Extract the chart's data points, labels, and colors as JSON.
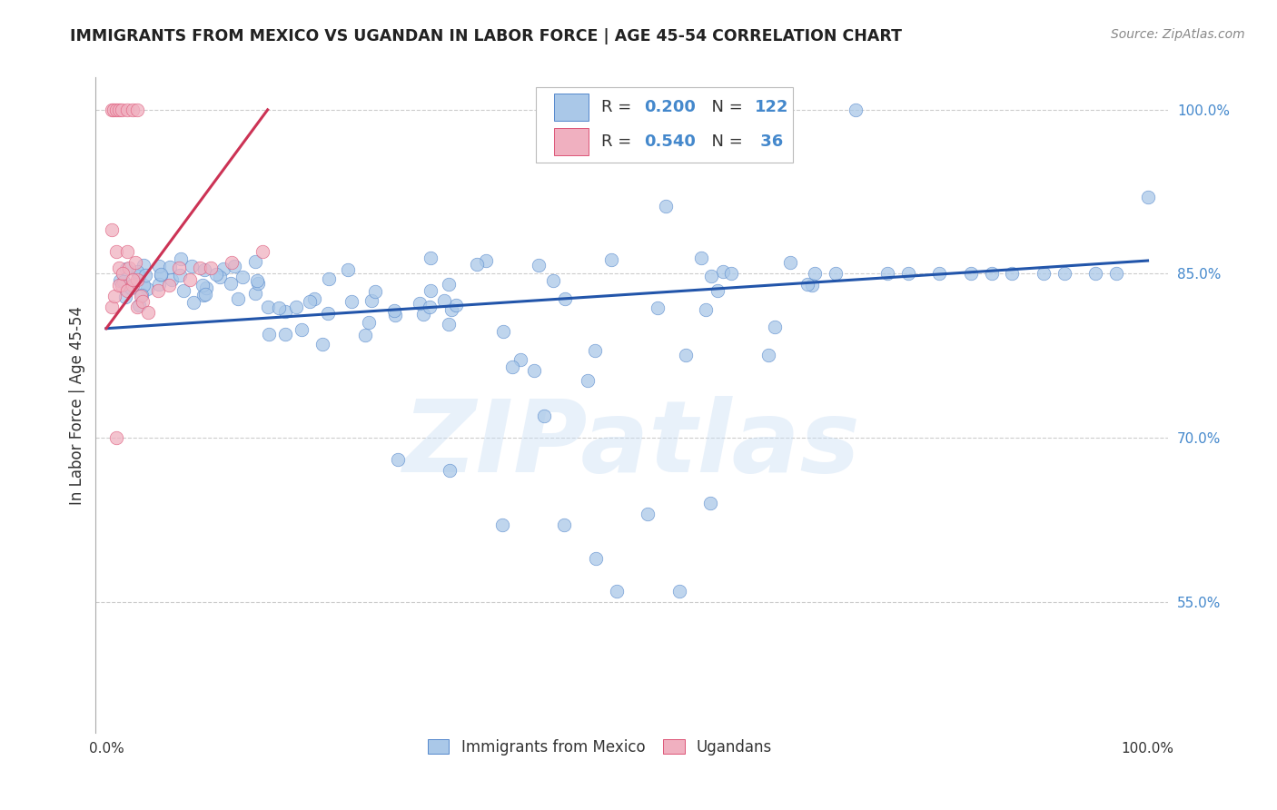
{
  "title": "IMMIGRANTS FROM MEXICO VS UGANDAN IN LABOR FORCE | AGE 45-54 CORRELATION CHART",
  "source": "Source: ZipAtlas.com",
  "ylabel": "In Labor Force | Age 45-54",
  "xlim": [
    -0.01,
    1.02
  ],
  "ylim": [
    0.43,
    1.03
  ],
  "yticks": [
    0.55,
    0.7,
    0.85,
    1.0
  ],
  "ytick_labels": [
    "55.0%",
    "70.0%",
    "85.0%",
    "100.0%"
  ],
  "xtick_labels": [
    "0.0%",
    "",
    "",
    "",
    "100.0%"
  ],
  "blue_R": 0.2,
  "blue_N": 122,
  "pink_R": 0.54,
  "pink_N": 36,
  "blue_color": "#aac8e8",
  "pink_color": "#f0b0c0",
  "blue_edge_color": "#5588cc",
  "pink_edge_color": "#dd5577",
  "blue_line_color": "#2255aa",
  "pink_line_color": "#cc3355",
  "legend_label_blue": "Immigrants from Mexico",
  "legend_label_pink": "Ugandans",
  "watermark": "ZIPatlas",
  "background_color": "#ffffff",
  "blue_trend_x": [
    0.0,
    1.0
  ],
  "blue_trend_y": [
    0.8,
    0.862
  ],
  "pink_trend_x": [
    0.0,
    0.155
  ],
  "pink_trend_y": [
    0.8,
    1.0
  ]
}
